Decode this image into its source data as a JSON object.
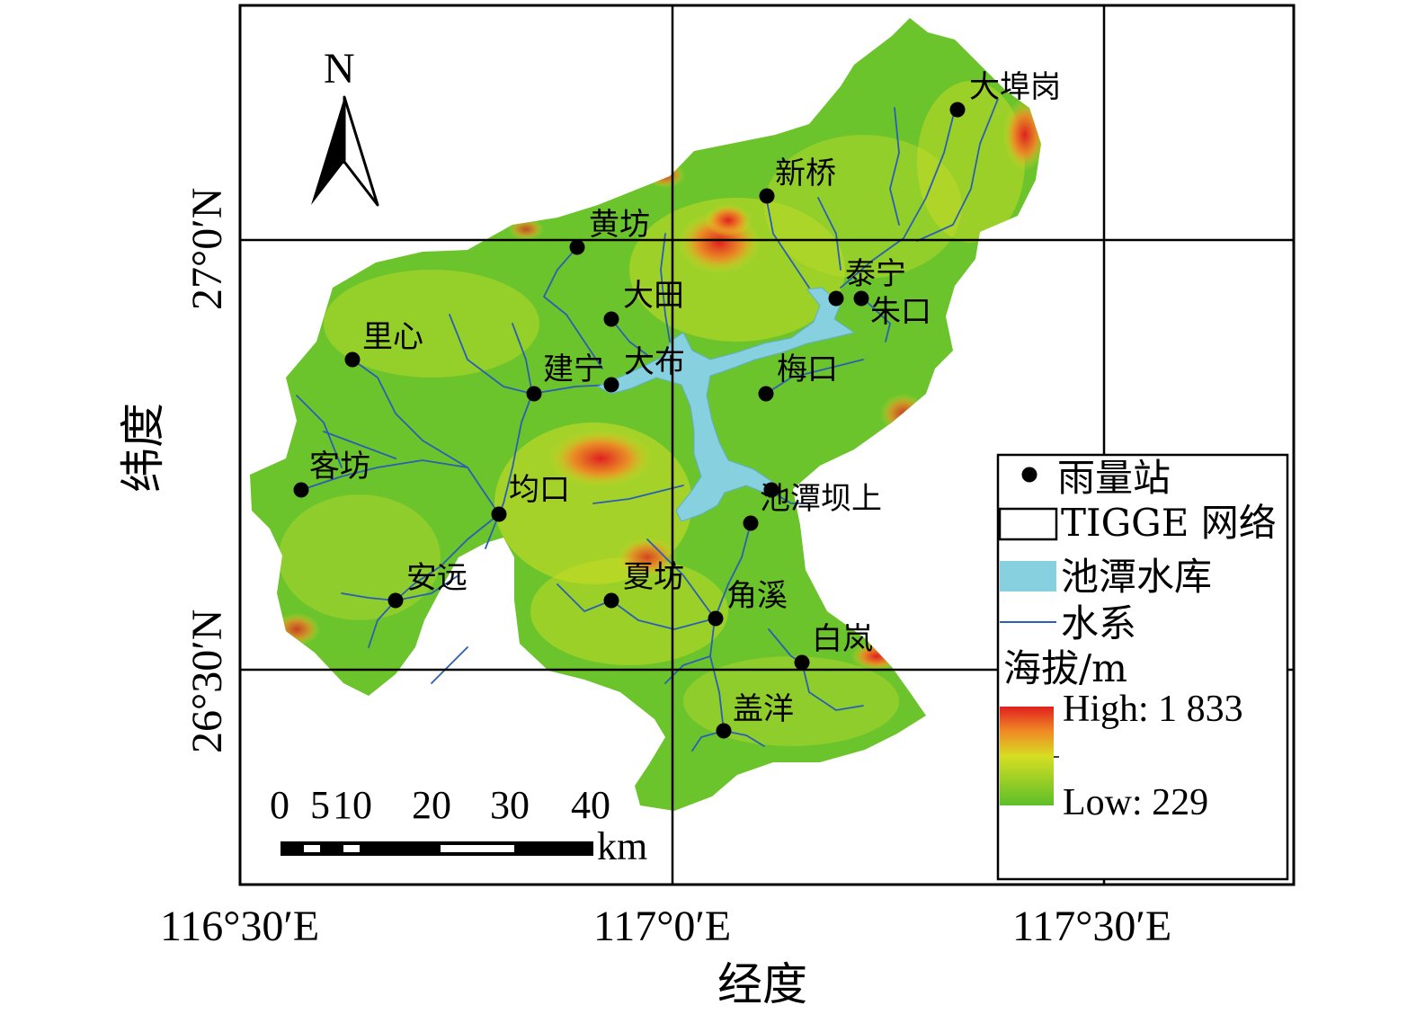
{
  "axes": {
    "x_title": "经度",
    "y_title": "纬度",
    "x_ticks": [
      "116°30′E",
      "117°0′E",
      "117°30′E"
    ],
    "y_ticks": [
      "27°0′N",
      "26°30′N"
    ]
  },
  "north_arrow": {
    "label": "N",
    "icon": "north-arrow-icon"
  },
  "scale_bar": {
    "tick_labels": [
      "0",
      "5",
      "10",
      "20",
      "30",
      "40"
    ],
    "unit": "km"
  },
  "stations": [
    {
      "id": "dabugang",
      "name": "大埠岗"
    },
    {
      "id": "xinqiao",
      "name": "新桥"
    },
    {
      "id": "huangfang",
      "name": "黄坊"
    },
    {
      "id": "taining",
      "name": "泰宁"
    },
    {
      "id": "zhukou",
      "name": "朱口"
    },
    {
      "id": "datian",
      "name": "大田"
    },
    {
      "id": "lixin",
      "name": "里心"
    },
    {
      "id": "jianning",
      "name": "建宁"
    },
    {
      "id": "dabu",
      "name": "大布"
    },
    {
      "id": "meikou",
      "name": "梅口"
    },
    {
      "id": "kefang",
      "name": "客坊"
    },
    {
      "id": "junkou",
      "name": "均口"
    },
    {
      "id": "chitanbashang",
      "name": "池潭坝上"
    },
    {
      "id": "anyuan",
      "name": "安远"
    },
    {
      "id": "xiafang",
      "name": "夏坊"
    },
    {
      "id": "jiaoxi",
      "name": "角溪"
    },
    {
      "id": "bailan",
      "name": "白岚"
    },
    {
      "id": "gaiyang",
      "name": "盖洋"
    }
  ],
  "legend": {
    "rain_station": "雨量站",
    "tigge_grid": "TIGGE 网络",
    "reservoir": "池潭水库",
    "river": "水系",
    "elevation_title": "海拔/m",
    "high_label": "High: 1 833",
    "low_label": "Low: 229",
    "high_value": 1833,
    "low_value": 229
  },
  "colors": {
    "terrain_low": "#5cbf2a",
    "terrain_mid": "#d8e020",
    "terrain_high": "#e02020",
    "reservoir": "#86d0e0",
    "river": "#2a5fb4",
    "station": "#000000"
  }
}
